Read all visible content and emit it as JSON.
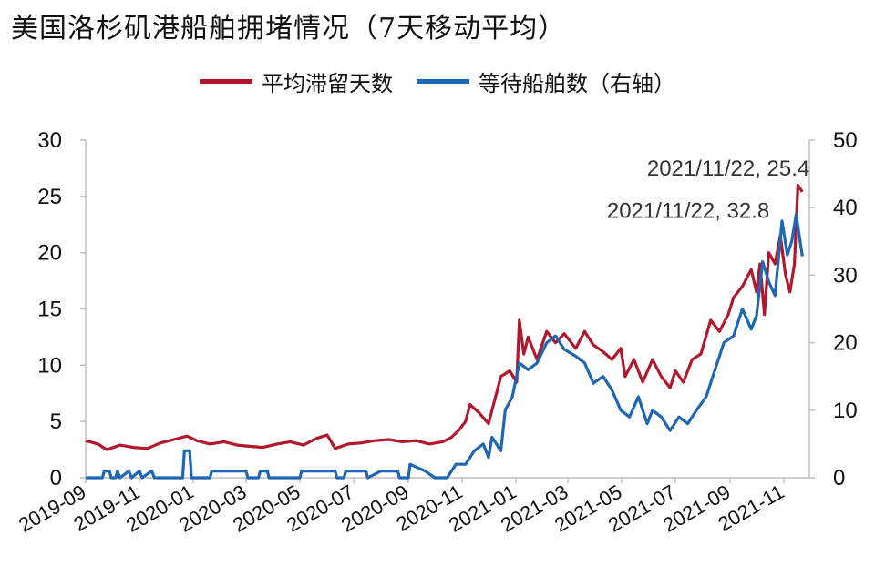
{
  "title": "美国洛杉矶港船舶拥堵情况（7天移动平均）",
  "legend": [
    {
      "label": "平均滞留天数",
      "color": "#b0182e"
    },
    {
      "label": "等待船舶数（右轴）",
      "color": "#1f66b3"
    }
  ],
  "chart_data": {
    "type": "line",
    "title": "美国洛杉矶港船舶拥堵情况（7天移动平均）",
    "xlabel": "",
    "ylabel": "",
    "x_range": [
      "2019-09-01",
      "2021-11-30"
    ],
    "x_tick_labels": [
      "2019-09",
      "2019-11",
      "2020-01",
      "2020-03",
      "2020-05",
      "2020-07",
      "2020-09",
      "2020-11",
      "2021-01",
      "2021-03",
      "2021-05",
      "2021-07",
      "2021-09",
      "2021-11"
    ],
    "y_left": {
      "ylim": [
        0,
        30
      ],
      "ticks": [
        0,
        5,
        10,
        15,
        20,
        25,
        30
      ]
    },
    "y_right": {
      "ylim": [
        0,
        50
      ],
      "ticks": [
        0,
        10,
        20,
        30,
        40,
        50
      ]
    },
    "grid": false,
    "legend_position": "top",
    "series": [
      {
        "name": "平均滞留天数",
        "axis": "left",
        "color": "#b0182e",
        "points": [
          [
            "2019-09-01",
            3.3
          ],
          [
            "2019-09-15",
            3.0
          ],
          [
            "2019-09-25",
            2.5
          ],
          [
            "2019-10-10",
            2.9
          ],
          [
            "2019-10-25",
            2.7
          ],
          [
            "2019-11-10",
            2.6
          ],
          [
            "2019-11-25",
            3.1
          ],
          [
            "2019-12-10",
            3.4
          ],
          [
            "2019-12-25",
            3.7
          ],
          [
            "2020-01-05",
            3.3
          ],
          [
            "2020-01-20",
            3.0
          ],
          [
            "2020-02-05",
            3.2
          ],
          [
            "2020-02-20",
            2.9
          ],
          [
            "2020-03-05",
            2.8
          ],
          [
            "2020-03-20",
            2.7
          ],
          [
            "2020-04-05",
            3.0
          ],
          [
            "2020-04-20",
            3.2
          ],
          [
            "2020-05-05",
            2.9
          ],
          [
            "2020-05-20",
            3.5
          ],
          [
            "2020-06-01",
            3.8
          ],
          [
            "2020-06-10",
            2.6
          ],
          [
            "2020-06-25",
            3.0
          ],
          [
            "2020-07-10",
            3.1
          ],
          [
            "2020-07-25",
            3.3
          ],
          [
            "2020-08-10",
            3.4
          ],
          [
            "2020-08-25",
            3.2
          ],
          [
            "2020-09-10",
            3.3
          ],
          [
            "2020-09-25",
            3.0
          ],
          [
            "2020-10-10",
            3.2
          ],
          [
            "2020-10-20",
            3.6
          ],
          [
            "2020-10-28",
            4.2
          ],
          [
            "2020-11-05",
            5.0
          ],
          [
            "2020-11-10",
            6.5
          ],
          [
            "2020-11-20",
            5.8
          ],
          [
            "2020-12-01",
            4.8
          ],
          [
            "2020-12-05",
            6.0
          ],
          [
            "2020-12-10",
            7.5
          ],
          [
            "2020-12-15",
            9.0
          ],
          [
            "2020-12-25",
            9.5
          ],
          [
            "2021-01-02",
            8.5
          ],
          [
            "2021-01-05",
            14.0
          ],
          [
            "2021-01-10",
            11.0
          ],
          [
            "2021-01-15",
            12.5
          ],
          [
            "2021-01-25",
            10.5
          ],
          [
            "2021-02-05",
            13.0
          ],
          [
            "2021-02-15",
            12.0
          ],
          [
            "2021-02-25",
            12.8
          ],
          [
            "2021-03-10",
            11.5
          ],
          [
            "2021-03-20",
            13.0
          ],
          [
            "2021-03-30",
            11.8
          ],
          [
            "2021-04-10",
            11.2
          ],
          [
            "2021-04-20",
            10.5
          ],
          [
            "2021-04-30",
            11.5
          ],
          [
            "2021-05-05",
            9.0
          ],
          [
            "2021-05-15",
            10.5
          ],
          [
            "2021-05-25",
            8.5
          ],
          [
            "2021-06-05",
            10.5
          ],
          [
            "2021-06-15",
            9.0
          ],
          [
            "2021-06-25",
            8.0
          ],
          [
            "2021-07-01",
            9.5
          ],
          [
            "2021-07-10",
            8.5
          ],
          [
            "2021-07-20",
            10.5
          ],
          [
            "2021-07-30",
            11.0
          ],
          [
            "2021-08-10",
            14.0
          ],
          [
            "2021-08-20",
            13.0
          ],
          [
            "2021-08-30",
            14.5
          ],
          [
            "2021-09-05",
            16.0
          ],
          [
            "2021-09-15",
            17.0
          ],
          [
            "2021-09-25",
            18.5
          ],
          [
            "2021-10-01",
            16.5
          ],
          [
            "2021-10-05",
            19.0
          ],
          [
            "2021-10-10",
            14.5
          ],
          [
            "2021-10-15",
            20.0
          ],
          [
            "2021-10-22",
            19.0
          ],
          [
            "2021-10-28",
            21.5
          ],
          [
            "2021-11-03",
            18.0
          ],
          [
            "2021-11-08",
            16.5
          ],
          [
            "2021-11-13",
            19.0
          ],
          [
            "2021-11-17",
            26.0
          ],
          [
            "2021-11-22",
            25.4
          ]
        ]
      },
      {
        "name": "等待船舶数（右轴）",
        "axis": "right",
        "color": "#1f66b3",
        "points": [
          [
            "2019-09-01",
            0
          ],
          [
            "2019-09-20",
            0
          ],
          [
            "2019-09-22",
            1
          ],
          [
            "2019-09-28",
            1
          ],
          [
            "2019-09-30",
            0
          ],
          [
            "2019-10-05",
            0
          ],
          [
            "2019-10-07",
            1
          ],
          [
            "2019-10-10",
            0
          ],
          [
            "2019-10-20",
            1
          ],
          [
            "2019-10-23",
            0
          ],
          [
            "2019-11-01",
            1
          ],
          [
            "2019-11-04",
            0
          ],
          [
            "2019-11-15",
            1
          ],
          [
            "2019-11-18",
            0
          ],
          [
            "2019-12-01",
            0
          ],
          [
            "2019-12-20",
            0
          ],
          [
            "2019-12-22",
            4
          ],
          [
            "2019-12-28",
            4
          ],
          [
            "2019-12-30",
            0
          ],
          [
            "2020-01-20",
            0
          ],
          [
            "2020-01-22",
            1
          ],
          [
            "2020-03-01",
            1
          ],
          [
            "2020-03-03",
            0
          ],
          [
            "2020-03-15",
            0
          ],
          [
            "2020-03-17",
            1
          ],
          [
            "2020-03-25",
            1
          ],
          [
            "2020-03-27",
            0
          ],
          [
            "2020-05-01",
            0
          ],
          [
            "2020-05-03",
            1
          ],
          [
            "2020-06-10",
            1
          ],
          [
            "2020-06-12",
            0
          ],
          [
            "2020-06-20",
            0
          ],
          [
            "2020-06-22",
            1
          ],
          [
            "2020-07-15",
            1
          ],
          [
            "2020-07-17",
            0
          ],
          [
            "2020-08-01",
            1
          ],
          [
            "2020-08-20",
            1
          ],
          [
            "2020-08-22",
            0
          ],
          [
            "2020-09-01",
            0
          ],
          [
            "2020-09-03",
            2
          ],
          [
            "2020-09-20",
            1
          ],
          [
            "2020-10-01",
            0
          ],
          [
            "2020-10-15",
            0
          ],
          [
            "2020-10-20",
            1
          ],
          [
            "2020-10-25",
            2
          ],
          [
            "2020-11-05",
            2
          ],
          [
            "2020-11-15",
            4
          ],
          [
            "2020-11-25",
            5
          ],
          [
            "2020-12-01",
            3
          ],
          [
            "2020-12-05",
            6
          ],
          [
            "2020-12-15",
            4
          ],
          [
            "2020-12-20",
            10
          ],
          [
            "2020-12-28",
            12
          ],
          [
            "2021-01-05",
            17
          ],
          [
            "2021-01-15",
            16
          ],
          [
            "2021-01-25",
            17
          ],
          [
            "2021-02-05",
            20
          ],
          [
            "2021-02-15",
            21
          ],
          [
            "2021-02-25",
            19
          ],
          [
            "2021-03-10",
            18
          ],
          [
            "2021-03-20",
            17
          ],
          [
            "2021-03-30",
            14
          ],
          [
            "2021-04-10",
            15
          ],
          [
            "2021-04-20",
            13
          ],
          [
            "2021-04-30",
            10
          ],
          [
            "2021-05-10",
            9
          ],
          [
            "2021-05-20",
            12
          ],
          [
            "2021-05-30",
            8
          ],
          [
            "2021-06-05",
            10
          ],
          [
            "2021-06-15",
            9
          ],
          [
            "2021-06-25",
            7
          ],
          [
            "2021-07-05",
            9
          ],
          [
            "2021-07-15",
            8
          ],
          [
            "2021-07-25",
            10
          ],
          [
            "2021-08-05",
            12
          ],
          [
            "2021-08-15",
            16
          ],
          [
            "2021-08-25",
            20
          ],
          [
            "2021-09-05",
            21
          ],
          [
            "2021-09-15",
            25
          ],
          [
            "2021-09-25",
            22
          ],
          [
            "2021-10-01",
            24
          ],
          [
            "2021-10-08",
            32
          ],
          [
            "2021-10-15",
            29
          ],
          [
            "2021-10-22",
            27
          ],
          [
            "2021-10-30",
            38
          ],
          [
            "2021-11-05",
            33
          ],
          [
            "2021-11-10",
            35
          ],
          [
            "2021-11-15",
            39
          ],
          [
            "2021-11-22",
            32.8
          ]
        ]
      }
    ],
    "annotations": [
      {
        "text": "2021/11/22, 25.4",
        "series": "平均滞留天数"
      },
      {
        "text": "2021/11/22, 32.8",
        "series": "等待船舶数（右轴）"
      }
    ]
  }
}
